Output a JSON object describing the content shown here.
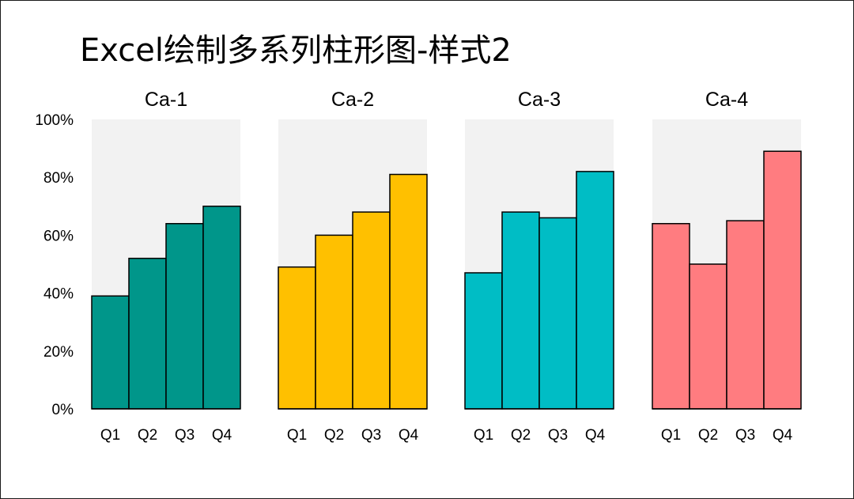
{
  "chart_data": {
    "type": "bar",
    "title": "Excel绘制多系列柱形图-样式2",
    "categories": [
      "Q1",
      "Q2",
      "Q3",
      "Q4"
    ],
    "y_tick_labels": [
      "0%",
      "20%",
      "40%",
      "60%",
      "80%",
      "100%"
    ],
    "ylim": [
      0,
      100
    ],
    "grid": false,
    "panels": [
      {
        "name": "Ca-1",
        "color": "#00968A",
        "values": [
          39,
          52,
          64,
          70
        ]
      },
      {
        "name": "Ca-2",
        "color": "#FFC000",
        "values": [
          49,
          60,
          68,
          81
        ]
      },
      {
        "name": "Ca-3",
        "color": "#00BDC5",
        "values": [
          47,
          68,
          66,
          82
        ]
      },
      {
        "name": "Ca-4",
        "color": "#FF7C80",
        "values": [
          64,
          50,
          65,
          89
        ]
      }
    ],
    "plot_background": "#F2F2F2",
    "bar_border_color": "#000000"
  }
}
